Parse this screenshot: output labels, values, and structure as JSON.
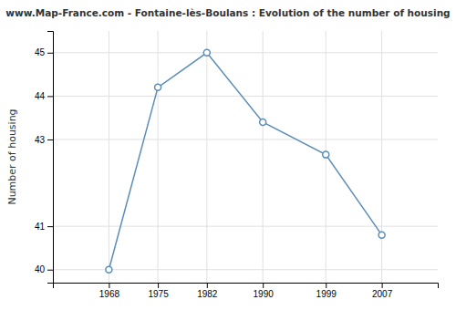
{
  "chart_data": {
    "type": "line",
    "title": "www.Map-France.com - Fontaine-lès-Boulans : Evolution of the number of housing",
    "ylabel": "Number of housing",
    "x": [
      1968,
      1975,
      1982,
      1990,
      1999,
      2007
    ],
    "values": [
      40.0,
      44.2,
      45.0,
      43.4,
      42.65,
      40.8
    ],
    "xlim": [
      1960,
      2015
    ],
    "xticks": [
      1968,
      1975,
      1982,
      1990,
      1999,
      2007
    ],
    "ylim": [
      39.7,
      45.5
    ],
    "yticks": [
      40,
      41,
      43,
      44,
      45
    ],
    "color": "#5b8db8",
    "marker": "circle",
    "grid": true
  }
}
